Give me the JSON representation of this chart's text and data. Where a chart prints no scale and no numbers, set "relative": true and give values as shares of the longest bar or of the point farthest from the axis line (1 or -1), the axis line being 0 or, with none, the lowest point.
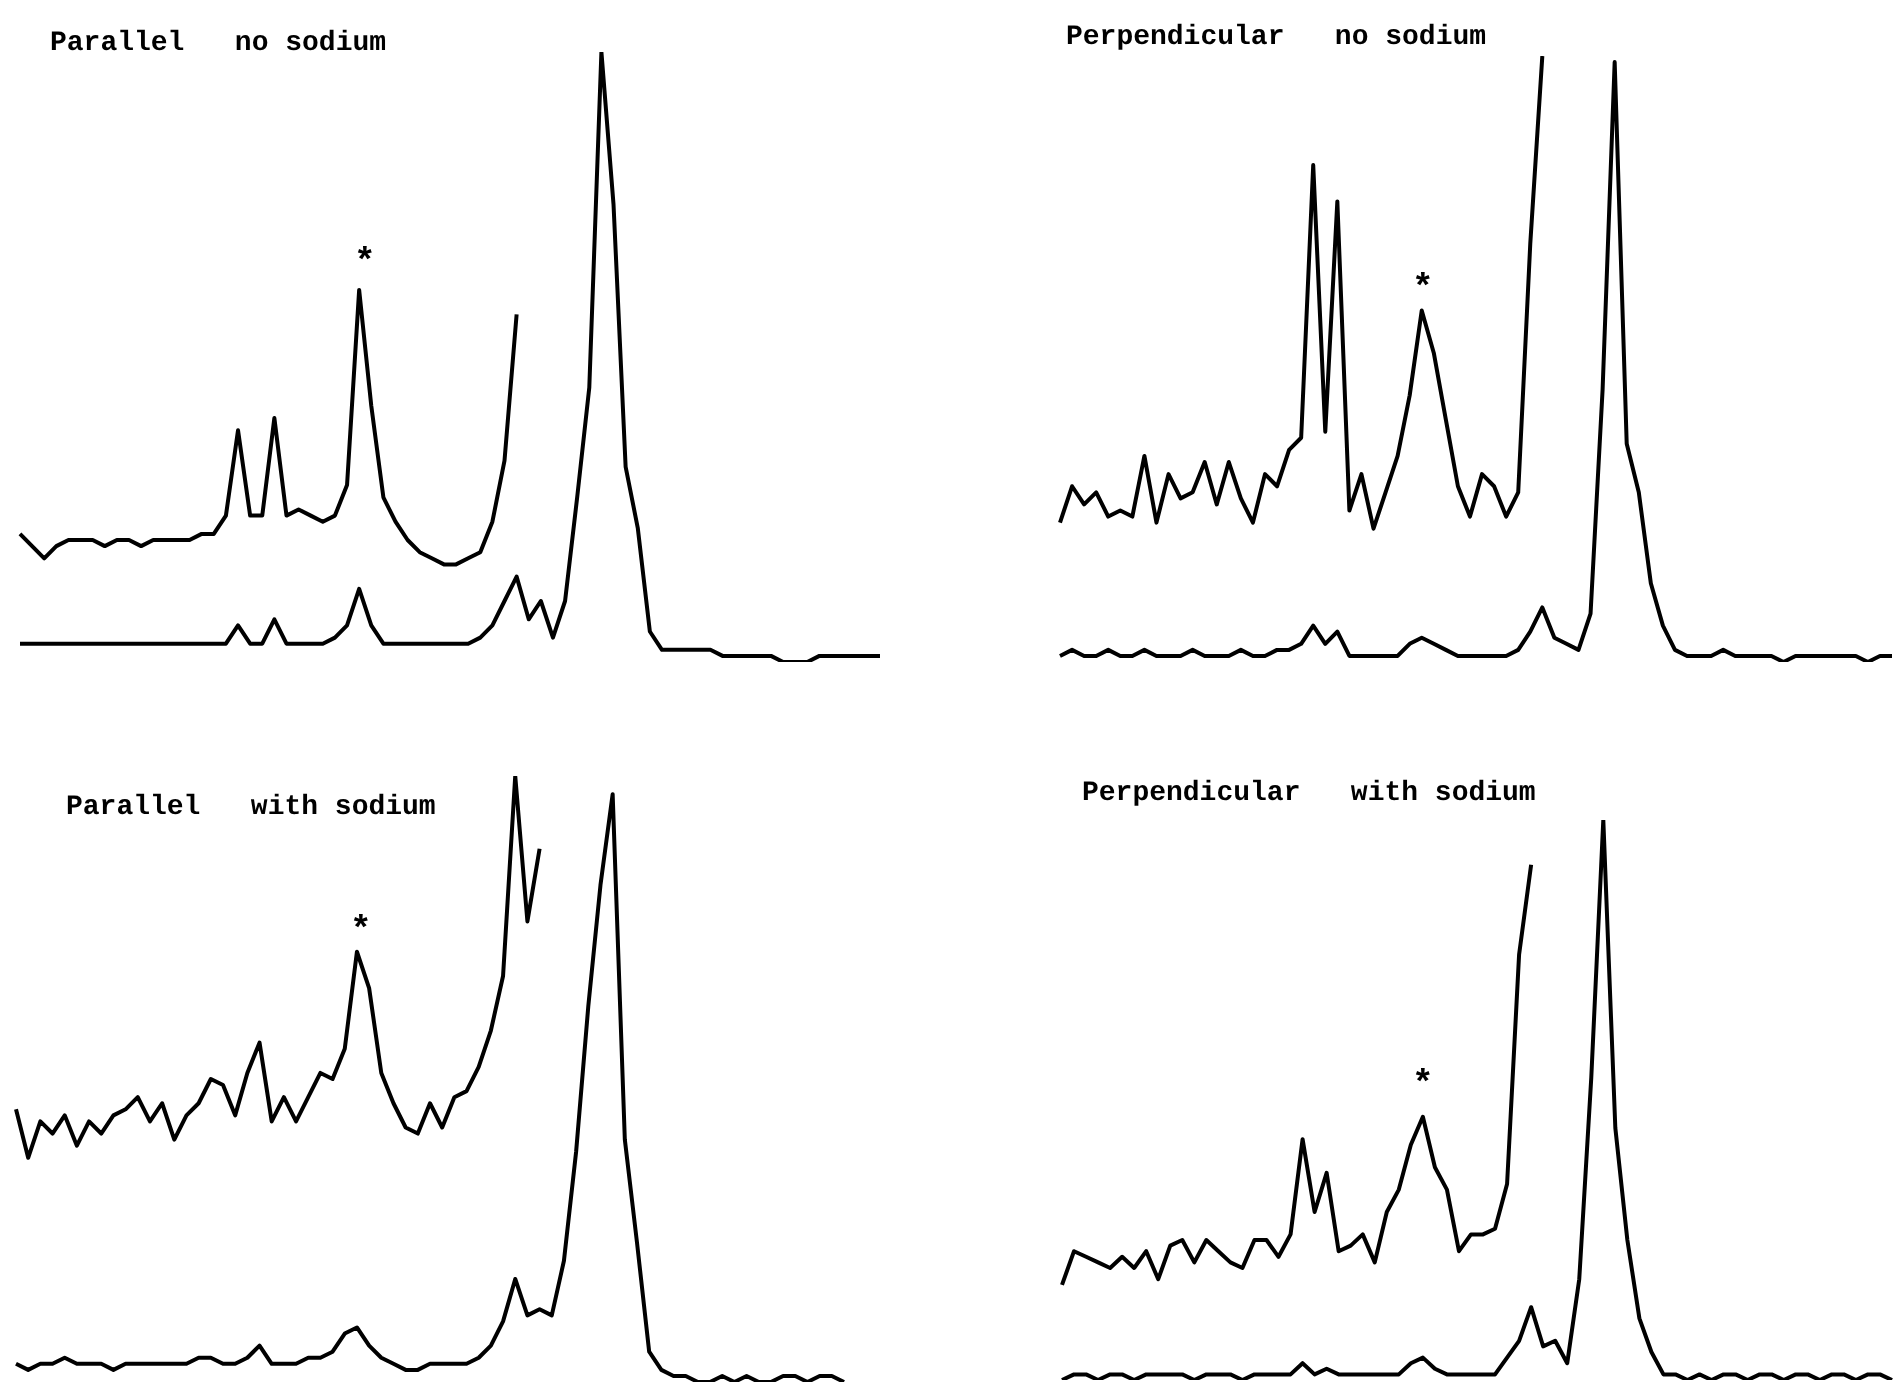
{
  "chart_data": [
    {
      "type": "line",
      "title": "Parallel   no sodium",
      "relative": true,
      "marker": "none",
      "annotations": [
        "*"
      ],
      "categories": [
        null,
        null,
        null,
        null,
        null,
        null,
        null,
        null,
        null,
        null,
        null,
        null,
        null,
        null,
        null,
        null,
        null,
        null,
        null,
        null,
        null,
        null,
        null,
        null,
        null,
        null,
        null,
        null,
        null,
        null,
        null,
        null,
        null,
        null,
        null,
        null,
        null,
        null,
        null,
        null,
        null,
        null,
        null,
        null,
        null,
        null,
        null,
        null,
        null,
        null,
        null,
        null,
        null,
        null,
        null,
        null,
        null,
        null,
        null,
        null,
        null,
        null,
        null,
        null,
        null,
        null,
        null,
        null,
        null,
        null,
        null,
        null
      ],
      "series": [
        {
          "color": "#000000",
          "values": [
            0.21,
            0.19,
            0.17,
            0.19,
            0.2,
            0.2,
            0.2,
            0.19,
            0.2,
            0.2,
            0.19,
            0.2,
            0.2,
            0.2,
            0.2,
            0.21,
            0.21,
            0.24,
            0.38,
            0.24,
            0.24,
            0.4,
            0.24,
            0.25,
            0.24,
            0.23,
            0.24,
            0.29,
            0.61,
            0.42,
            0.27,
            0.23,
            0.2,
            0.18,
            0.17,
            0.16,
            0.16,
            0.17,
            0.18,
            0.23,
            0.33,
            0.57,
            null,
            null,
            null,
            null,
            null,
            null,
            null,
            null,
            null,
            null,
            null,
            null,
            null,
            null,
            null,
            null,
            null,
            null,
            null,
            null,
            null,
            null,
            null,
            null,
            null,
            null,
            null,
            null,
            null,
            null
          ]
        },
        {
          "color": "#000000",
          "values": [
            0.03,
            0.03,
            0.03,
            0.03,
            0.03,
            0.03,
            0.03,
            0.03,
            0.03,
            0.03,
            0.03,
            0.03,
            0.03,
            0.03,
            0.03,
            0.03,
            0.03,
            0.03,
            0.06,
            0.03,
            0.03,
            0.07,
            0.03,
            0.03,
            0.03,
            0.03,
            0.04,
            0.06,
            0.12,
            0.06,
            0.03,
            0.03,
            0.03,
            0.03,
            0.03,
            0.03,
            0.03,
            0.03,
            0.04,
            0.06,
            0.1,
            0.14,
            0.07,
            0.1,
            0.04,
            0.1,
            0.27,
            0.45,
            1,
            0.75,
            0.32,
            0.22,
            0.05,
            0.02,
            0.02,
            0.02,
            0.02,
            0.02,
            0.01,
            0.01,
            0.01,
            0.01,
            0.01,
            0,
            0,
            0,
            0.01,
            0.01,
            0.01,
            0.01,
            0.01,
            0.01
          ]
        }
      ]
    },
    {
      "type": "line",
      "title": "Perpendicular   no sodium",
      "relative": true,
      "marker": "none",
      "annotations": [
        "*"
      ],
      "categories": [
        null,
        null,
        null,
        null,
        null,
        null,
        null,
        null,
        null,
        null,
        null,
        null,
        null,
        null,
        null,
        null,
        null,
        null,
        null,
        null,
        null,
        null,
        null,
        null,
        null,
        null,
        null,
        null,
        null,
        null,
        null,
        null,
        null,
        null,
        null,
        null,
        null,
        null,
        null,
        null,
        null,
        null,
        null,
        null,
        null,
        null,
        null,
        null,
        null,
        null,
        null,
        null,
        null,
        null,
        null,
        null,
        null,
        null,
        null,
        null,
        null,
        null,
        null,
        null,
        null,
        null,
        null,
        null,
        null,
        null
      ],
      "series": [
        {
          "color": "#000000",
          "values": [
            0.23,
            0.29,
            0.26,
            0.28,
            0.24,
            0.25,
            0.24,
            0.34,
            0.23,
            0.31,
            0.27,
            0.28,
            0.33,
            0.26,
            0.33,
            0.27,
            0.23,
            0.31,
            0.29,
            0.35,
            0.37,
            0.82,
            0.38,
            0.76,
            0.25,
            0.31,
            0.22,
            0.28,
            0.34,
            0.44,
            0.58,
            0.51,
            0.4,
            0.29,
            0.24,
            0.31,
            0.29,
            0.24,
            0.28,
            0.69,
            1,
            null,
            null,
            null,
            null,
            null,
            null,
            null,
            null,
            null,
            null,
            null,
            null,
            null,
            null,
            null,
            null,
            null,
            null,
            null,
            null,
            null,
            null,
            null,
            null,
            null,
            null,
            null,
            null,
            null
          ]
        },
        {
          "color": "#000000",
          "values": [
            0.01,
            0.02,
            0.01,
            0.01,
            0.02,
            0.01,
            0.01,
            0.02,
            0.01,
            0.01,
            0.01,
            0.02,
            0.01,
            0.01,
            0.01,
            0.02,
            0.01,
            0.01,
            0.02,
            0.02,
            0.03,
            0.06,
            0.03,
            0.05,
            0.01,
            0.01,
            0.01,
            0.01,
            0.01,
            0.03,
            0.04,
            0.03,
            0.02,
            0.01,
            0.01,
            0.01,
            0.01,
            0.01,
            0.02,
            0.05,
            0.09,
            0.04,
            0.03,
            0.02,
            0.08,
            0.45,
            0.99,
            0.36,
            0.28,
            0.13,
            0.06,
            0.02,
            0.01,
            0.01,
            0.01,
            0.02,
            0.01,
            0.01,
            0.01,
            0.01,
            0,
            0.01,
            0.01,
            0.01,
            0.01,
            0.01,
            0.01,
            0,
            0.01,
            0.01
          ]
        }
      ]
    },
    {
      "type": "line",
      "title": "Parallel   with sodium",
      "relative": true,
      "marker": "none",
      "annotations": [
        "*"
      ],
      "categories": [
        null,
        null,
        null,
        null,
        null,
        null,
        null,
        null,
        null,
        null,
        null,
        null,
        null,
        null,
        null,
        null,
        null,
        null,
        null,
        null,
        null,
        null,
        null,
        null,
        null,
        null,
        null,
        null,
        null,
        null,
        null,
        null,
        null,
        null,
        null,
        null,
        null,
        null,
        null,
        null,
        null,
        null,
        null,
        null,
        null,
        null,
        null,
        null,
        null,
        null,
        null,
        null,
        null,
        null,
        null,
        null,
        null,
        null,
        null,
        null,
        null,
        null,
        null,
        null,
        null,
        null,
        null,
        null,
        null
      ],
      "series": [
        {
          "color": "#000000",
          "values": [
            0.45,
            0.37,
            0.43,
            0.41,
            0.44,
            0.39,
            0.43,
            0.41,
            0.44,
            0.45,
            0.47,
            0.43,
            0.46,
            0.4,
            0.44,
            0.46,
            0.5,
            0.49,
            0.44,
            0.51,
            0.56,
            0.43,
            0.47,
            0.43,
            0.47,
            0.51,
            0.5,
            0.55,
            0.71,
            0.65,
            0.51,
            0.46,
            0.42,
            0.41,
            0.46,
            0.42,
            0.47,
            0.48,
            0.52,
            0.58,
            0.67,
            1,
            0.76,
            0.88,
            null,
            null,
            null,
            null,
            null,
            null,
            null,
            null,
            null,
            null,
            null,
            null,
            null,
            null,
            null,
            null,
            null,
            null,
            null,
            null,
            null,
            null,
            null,
            null,
            null
          ]
        },
        {
          "color": "#000000",
          "values": [
            0.03,
            0.02,
            0.03,
            0.03,
            0.04,
            0.03,
            0.03,
            0.03,
            0.02,
            0.03,
            0.03,
            0.03,
            0.03,
            0.03,
            0.03,
            0.04,
            0.04,
            0.03,
            0.03,
            0.04,
            0.06,
            0.03,
            0.03,
            0.03,
            0.04,
            0.04,
            0.05,
            0.08,
            0.09,
            0.06,
            0.04,
            0.03,
            0.02,
            0.02,
            0.03,
            0.03,
            0.03,
            0.03,
            0.04,
            0.06,
            0.1,
            0.17,
            0.11,
            0.12,
            0.11,
            0.2,
            0.38,
            0.62,
            0.82,
            0.97,
            0.4,
            0.23,
            0.05,
            0.02,
            0.01,
            0.01,
            0,
            0,
            0.01,
            0,
            0.01,
            0,
            0,
            0.01,
            0.01,
            0,
            0.01,
            0.01,
            0
          ]
        }
      ]
    },
    {
      "type": "line",
      "title": "Perpendicular   with sodium",
      "relative": true,
      "marker": "none",
      "annotations": [
        "*"
      ],
      "categories": [
        null,
        null,
        null,
        null,
        null,
        null,
        null,
        null,
        null,
        null,
        null,
        null,
        null,
        null,
        null,
        null,
        null,
        null,
        null,
        null,
        null,
        null,
        null,
        null,
        null,
        null,
        null,
        null,
        null,
        null,
        null,
        null,
        null,
        null,
        null,
        null,
        null,
        null,
        null,
        null,
        null,
        null,
        null,
        null,
        null,
        null,
        null,
        null,
        null,
        null,
        null,
        null,
        null,
        null,
        null,
        null,
        null,
        null,
        null,
        null,
        null,
        null,
        null,
        null,
        null,
        null,
        null,
        null,
        null,
        null
      ],
      "series": [
        {
          "color": "#000000",
          "values": [
            0.17,
            0.23,
            0.22,
            0.21,
            0.2,
            0.22,
            0.2,
            0.23,
            0.18,
            0.24,
            0.25,
            0.21,
            0.25,
            0.23,
            0.21,
            0.2,
            0.25,
            0.25,
            0.22,
            0.26,
            0.43,
            0.3,
            0.37,
            0.23,
            0.24,
            0.26,
            0.21,
            0.3,
            0.34,
            0.42,
            0.47,
            0.38,
            0.34,
            0.23,
            0.26,
            0.26,
            0.27,
            0.35,
            0.76,
            0.92,
            null,
            null,
            null,
            null,
            null,
            null,
            null,
            null,
            null,
            null,
            null,
            null,
            null,
            null,
            null,
            null,
            null,
            null,
            null,
            null,
            null,
            null,
            null,
            null,
            null,
            null,
            null,
            null,
            null,
            null
          ]
        },
        {
          "color": "#000000",
          "values": [
            0,
            0.01,
            0.01,
            0,
            0.01,
            0.01,
            0,
            0.01,
            0.01,
            0.01,
            0.01,
            0,
            0.01,
            0.01,
            0.01,
            0,
            0.01,
            0.01,
            0.01,
            0.01,
            0.03,
            0.01,
            0.02,
            0.01,
            0.01,
            0.01,
            0.01,
            0.01,
            0.01,
            0.03,
            0.04,
            0.02,
            0.01,
            0.01,
            0.01,
            0.01,
            0.01,
            0.04,
            0.07,
            0.13,
            0.06,
            0.07,
            0.03,
            0.18,
            0.54,
            1,
            0.45,
            0.25,
            0.11,
            0.05,
            0.01,
            0.01,
            0,
            0.01,
            0,
            0.01,
            0.01,
            0,
            0.01,
            0.01,
            0,
            0.01,
            0.01,
            0,
            0.01,
            0.01,
            0,
            0.01,
            0.01,
            0
          ]
        }
      ]
    }
  ]
}
